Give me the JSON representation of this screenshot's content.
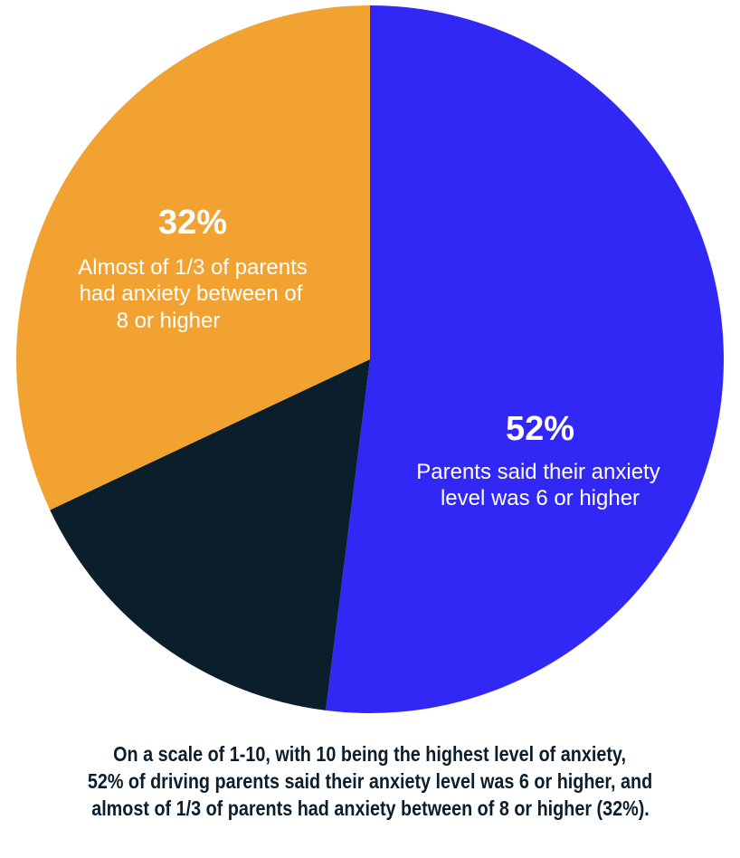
{
  "chart_data": {
    "type": "pie",
    "slices": [
      {
        "value": 52,
        "color": "#3128f5",
        "pct_label": "52%",
        "text": [
          "Parents said their anxiety",
          "level was 6 or higher"
        ]
      },
      {
        "value": 16,
        "color": "#0b1e2c"
      },
      {
        "value": 32,
        "color": "#f2a230",
        "pct_label": "32%",
        "text": [
          "Almost of 1/3 of parents",
          "had anxiety between of",
          "8 or higher"
        ]
      }
    ],
    "start": "top",
    "direction": "clockwise"
  },
  "caption": [
    "On a scale of 1-10, with 10 being the highest level of anxiety,",
    "52% of driving parents said their anxiety level was 6 or higher, and",
    "almost of 1/3 of parents had anxiety between of 8 or higher (32%)."
  ]
}
